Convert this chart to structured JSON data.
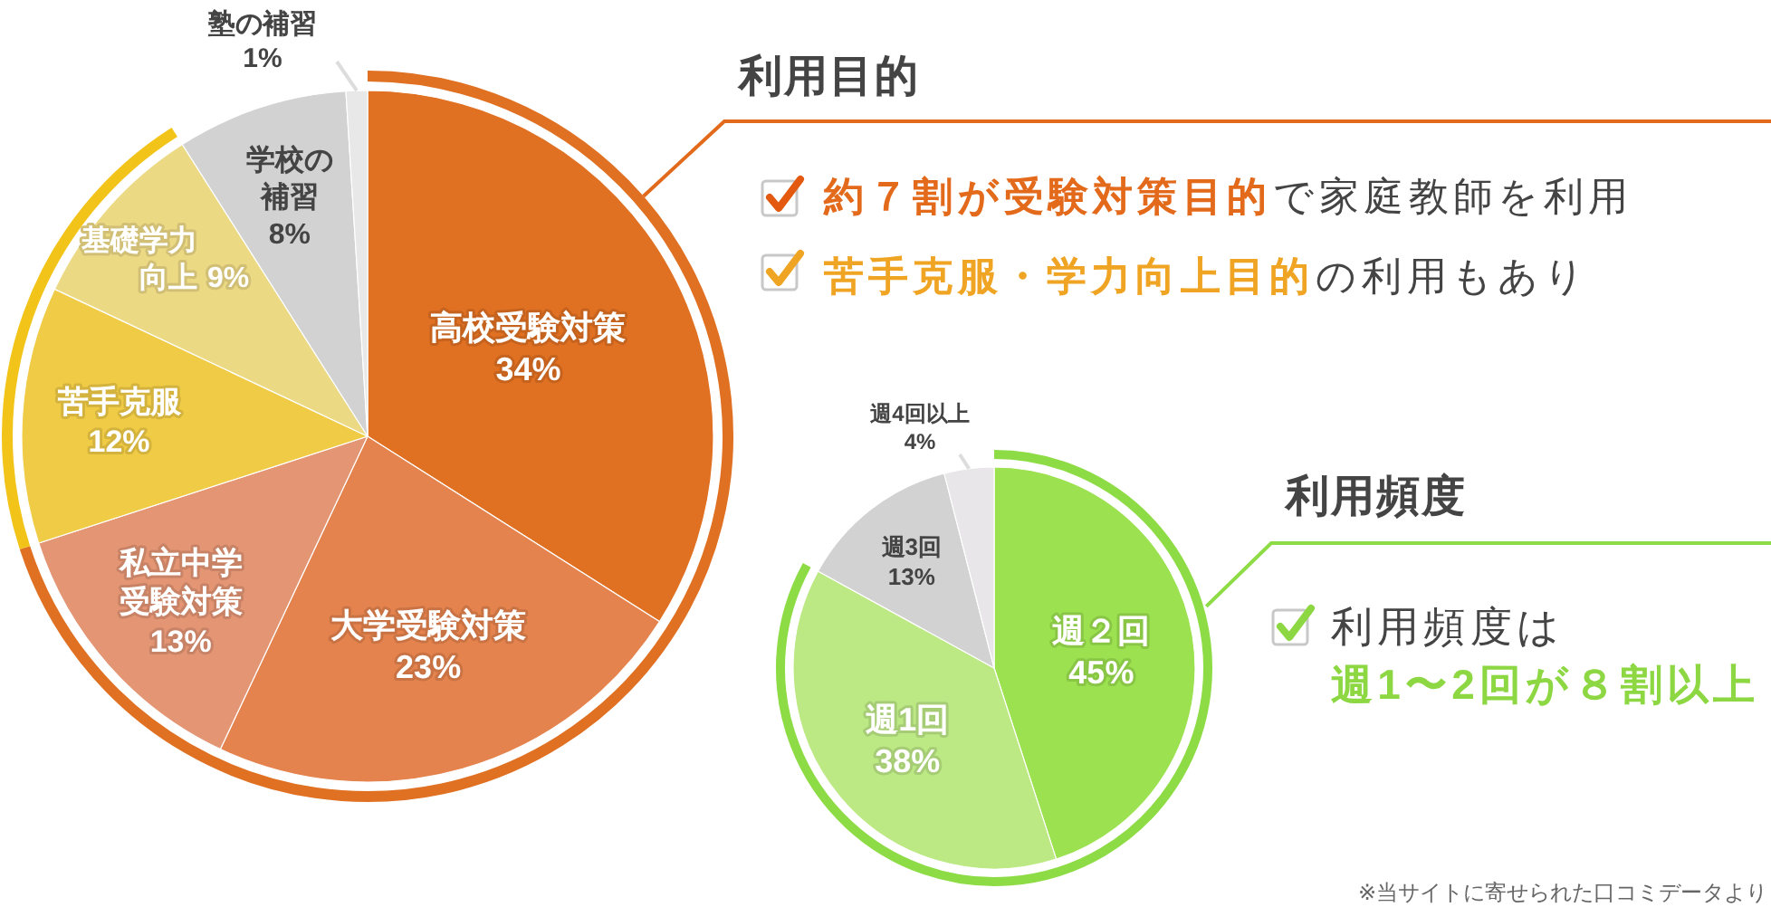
{
  "chart_data": [
    {
      "type": "pie",
      "title": "利用目的",
      "categories": [
        "高校受験対策",
        "大学受験対策",
        "私立中学受験対策",
        "苦手克服",
        "基礎学力向上",
        "学校の補習",
        "塾の補習"
      ],
      "values": [
        34,
        23,
        13,
        12,
        9,
        8,
        1
      ],
      "colors": [
        "#e07022",
        "#e4834d",
        "#e39574",
        "#f0cb45",
        "#ecd984",
        "#d2d2d2",
        "#e8e8e8"
      ],
      "value_labels": [
        "34%",
        "23%",
        "13%",
        "12%",
        "9%",
        "8%",
        "1%"
      ],
      "annotations": [
        "約７割が受験対策目的",
        "で家庭教師を利用",
        "苦手克服・学力向上目的",
        "の利用もあり"
      ]
    },
    {
      "type": "pie",
      "title": "利用頻度",
      "categories": [
        "週２回",
        "週1回",
        "週3回",
        "週4回以上"
      ],
      "values": [
        45,
        38,
        13,
        4
      ],
      "colors": [
        "#9ce150",
        "#bde985",
        "#d2d2d2",
        "#e8e6e8"
      ],
      "value_labels": [
        "45%",
        "38%",
        "13%",
        "4%"
      ],
      "annotations": [
        "利用頻度は",
        "週1〜2回が８割以上",
        "※当サイトに寄せられた口コミデータより"
      ]
    }
  ]
}
